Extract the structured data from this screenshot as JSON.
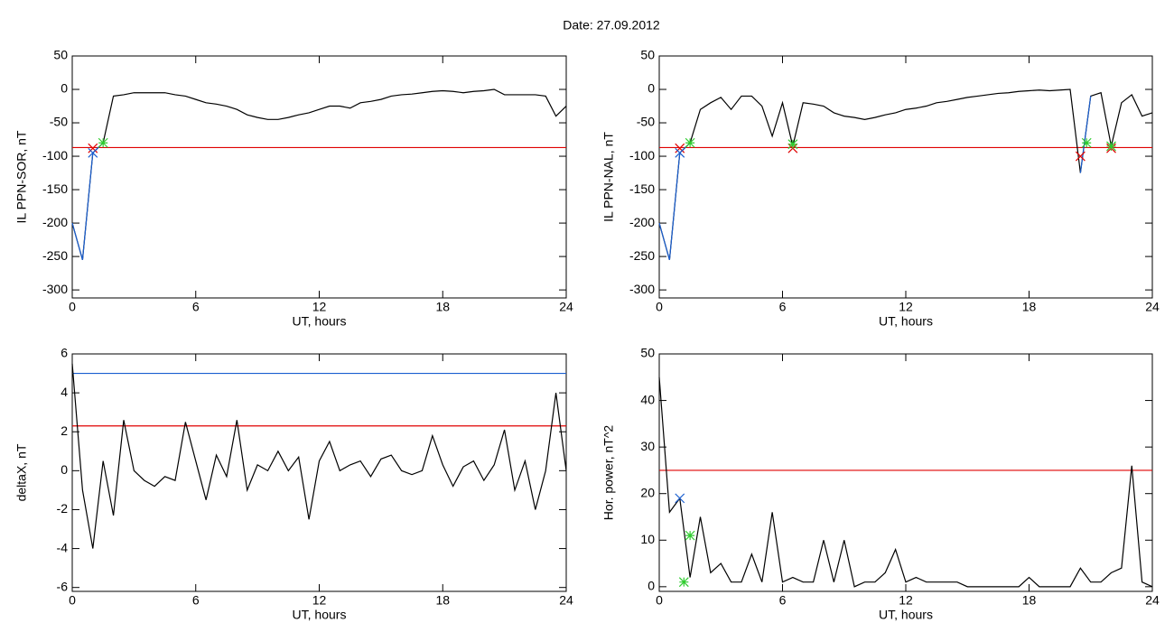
{
  "title": "Date:  27.09.2012",
  "chart_data": [
    {
      "type": "line",
      "y_label": "IL PPN-SOR, nT",
      "x_label": "UT, hours",
      "x": [
        0,
        0.5,
        1,
        1.5,
        2,
        2.5,
        3,
        3.5,
        4,
        4.5,
        5,
        5.5,
        6,
        6.5,
        7,
        7.5,
        8,
        8.5,
        9,
        9.5,
        10,
        10.5,
        11,
        11.5,
        12,
        12.5,
        13,
        13.5,
        14,
        14.5,
        15,
        15.5,
        16,
        16.5,
        17,
        17.5,
        18,
        18.5,
        19,
        19.5,
        20,
        20.5,
        21,
        21.5,
        22,
        22.5,
        23,
        23.5,
        24
      ],
      "series": [
        {
          "color": "#000000",
          "values": [
            -200,
            -255,
            -95,
            -80,
            -10,
            -8,
            -5,
            -5,
            -5,
            -5,
            -8,
            -10,
            -15,
            -20,
            -22,
            -25,
            -30,
            -38,
            -42,
            -45,
            -45,
            -42,
            -38,
            -35,
            -30,
            -25,
            -25,
            -28,
            -20,
            -18,
            -15,
            -10,
            -8,
            -7,
            -5,
            -3,
            -2,
            -3,
            -5,
            -3,
            -2,
            0,
            -8,
            -8,
            -8,
            -8,
            -10,
            -40,
            -25
          ]
        },
        {
          "color": "#1a5fd0",
          "values": [
            -200,
            -255,
            -95,
            -80,
            null,
            null,
            null,
            null,
            null,
            null,
            null,
            null,
            null,
            null,
            null,
            null,
            null,
            null,
            null,
            null,
            null,
            null,
            null,
            null,
            null,
            null,
            null,
            null,
            null,
            null,
            null,
            null,
            null,
            null,
            null,
            null,
            null,
            null,
            null,
            null,
            null,
            null,
            null,
            null,
            null,
            null,
            null,
            null,
            null
          ]
        }
      ],
      "hlines": [
        {
          "value": -87,
          "color": "#e00000"
        }
      ],
      "markers": [
        {
          "x": 1,
          "y": -88,
          "color": "#e00000",
          "symbol": "x"
        },
        {
          "x": 1,
          "y": -95,
          "color": "#1a5fd0",
          "symbol": "x"
        },
        {
          "x": 1.5,
          "y": -80,
          "color": "#2ecc2e",
          "symbol": "star"
        }
      ],
      "xlim": [
        0,
        24
      ],
      "xticks": [
        0,
        6,
        12,
        18,
        24
      ],
      "ylim": [
        -312,
        50
      ],
      "yticks": [
        50,
        0,
        -50,
        -100,
        -150,
        -200,
        -250,
        -300
      ]
    },
    {
      "type": "line",
      "y_label": "IL PPN-NAL, nT",
      "x_label": "UT, hours",
      "x": [
        0,
        0.5,
        1,
        1.5,
        2,
        2.5,
        3,
        3.5,
        4,
        4.5,
        5,
        5.5,
        6,
        6.5,
        7,
        7.5,
        8,
        8.5,
        9,
        9.5,
        10,
        10.5,
        11,
        11.5,
        12,
        12.5,
        13,
        13.5,
        14,
        14.5,
        15,
        15.5,
        16,
        16.5,
        17,
        17.5,
        18,
        18.5,
        19,
        19.5,
        20,
        20.5,
        21,
        21.5,
        22,
        22.5,
        23,
        23.5,
        24
      ],
      "series": [
        {
          "color": "#000000",
          "values": [
            -200,
            -255,
            -95,
            -80,
            -30,
            -20,
            -12,
            -30,
            -10,
            -10,
            -25,
            -70,
            -20,
            -85,
            -20,
            -22,
            -25,
            -35,
            -40,
            -42,
            -45,
            -42,
            -38,
            -35,
            -30,
            -28,
            -25,
            -20,
            -18,
            -15,
            -12,
            -10,
            -8,
            -6,
            -5,
            -3,
            -2,
            -1,
            -2,
            -1,
            0,
            -125,
            -10,
            -5,
            -85,
            -20,
            -8,
            -40,
            -35
          ]
        },
        {
          "color": "#1a5fd0",
          "values": [
            -200,
            -255,
            -95,
            -80,
            null,
            null,
            null,
            null,
            null,
            null,
            null,
            null,
            null,
            null,
            null,
            null,
            null,
            null,
            null,
            null,
            null,
            null,
            null,
            null,
            null,
            null,
            null,
            null,
            null,
            null,
            null,
            null,
            null,
            null,
            null,
            null,
            null,
            null,
            null,
            null,
            null,
            -125,
            -10,
            null,
            null,
            null,
            null,
            null,
            null
          ]
        }
      ],
      "hlines": [
        {
          "value": -87,
          "color": "#e00000"
        }
      ],
      "markers": [
        {
          "x": 1,
          "y": -88,
          "color": "#e00000",
          "symbol": "x"
        },
        {
          "x": 6.5,
          "y": -88,
          "color": "#e00000",
          "symbol": "x"
        },
        {
          "x": 20.5,
          "y": -100,
          "color": "#e00000",
          "symbol": "x"
        },
        {
          "x": 22,
          "y": -88,
          "color": "#e00000",
          "symbol": "x"
        },
        {
          "x": 1,
          "y": -95,
          "color": "#1a5fd0",
          "symbol": "x"
        },
        {
          "x": 1.5,
          "y": -80,
          "color": "#2ecc2e",
          "symbol": "star"
        },
        {
          "x": 6.5,
          "y": -82,
          "color": "#2ecc2e",
          "symbol": "star"
        },
        {
          "x": 20.8,
          "y": -80,
          "color": "#2ecc2e",
          "symbol": "star"
        },
        {
          "x": 22,
          "y": -85,
          "color": "#2ecc2e",
          "symbol": "star"
        }
      ],
      "xlim": [
        0,
        24
      ],
      "xticks": [
        0,
        6,
        12,
        18,
        24
      ],
      "ylim": [
        -312,
        50
      ],
      "yticks": [
        50,
        0,
        -50,
        -100,
        -150,
        -200,
        -250,
        -300
      ]
    },
    {
      "type": "line",
      "y_label": "deltaX, nT",
      "x_label": "UT, hours",
      "x": [
        0,
        0.5,
        1,
        1.5,
        2,
        2.5,
        3,
        3.5,
        4,
        4.5,
        5,
        5.5,
        6,
        6.5,
        7,
        7.5,
        8,
        8.5,
        9,
        9.5,
        10,
        10.5,
        11,
        11.5,
        12,
        12.5,
        13,
        13.5,
        14,
        14.5,
        15,
        15.5,
        16,
        16.5,
        17,
        17.5,
        18,
        18.5,
        19,
        19.5,
        20,
        20.5,
        21,
        21.5,
        22,
        22.5,
        23,
        23.5,
        24
      ],
      "series": [
        {
          "color": "#000000",
          "values": [
            5.5,
            -1,
            -4,
            0.5,
            -2.3,
            2.6,
            0,
            -0.5,
            -0.8,
            -0.3,
            -0.5,
            2.5,
            0.5,
            -1.5,
            0.8,
            -0.3,
            2.6,
            -1,
            0.3,
            0,
            1,
            0,
            0.7,
            -2.5,
            0.5,
            1.5,
            0,
            0.3,
            0.5,
            -0.3,
            0.6,
            0.8,
            0,
            -0.2,
            0,
            1.8,
            0.3,
            -0.8,
            0.2,
            0.5,
            -0.5,
            0.3,
            2.1,
            -1,
            0.5,
            -2,
            0,
            4,
            0
          ]
        }
      ],
      "hlines": [
        {
          "value": 5,
          "color": "#1a5fd0"
        },
        {
          "value": 2.3,
          "color": "#e00000"
        }
      ],
      "markers": [],
      "xlim": [
        0,
        24
      ],
      "xticks": [
        0,
        6,
        12,
        18,
        24
      ],
      "ylim": [
        -6.2,
        6
      ],
      "yticks": [
        6,
        4,
        2,
        0,
        -2,
        -4,
        -6
      ]
    },
    {
      "type": "line",
      "y_label": "Hor. power, nT^2",
      "x_label": "UT, hours",
      "x": [
        0,
        0.5,
        1,
        1.5,
        2,
        2.5,
        3,
        3.5,
        4,
        4.5,
        5,
        5.5,
        6,
        6.5,
        7,
        7.5,
        8,
        8.5,
        9,
        9.5,
        10,
        10.5,
        11,
        11.5,
        12,
        12.5,
        13,
        13.5,
        14,
        14.5,
        15,
        15.5,
        16,
        16.5,
        17,
        17.5,
        18,
        18.5,
        19,
        19.5,
        20,
        20.5,
        21,
        21.5,
        22,
        22.5,
        23,
        23.5,
        24
      ],
      "series": [
        {
          "color": "#000000",
          "values": [
            45,
            16,
            19,
            2,
            15,
            3,
            5,
            1,
            1,
            7,
            1,
            16,
            1,
            2,
            1,
            1,
            10,
            1,
            10,
            0,
            1,
            1,
            3,
            8,
            1,
            2,
            1,
            1,
            1,
            1,
            0,
            0,
            0,
            0,
            0,
            0,
            2,
            0,
            0,
            0,
            0,
            4,
            1,
            1,
            3,
            4,
            26,
            1,
            0
          ]
        }
      ],
      "hlines": [
        {
          "value": 25,
          "color": "#e00000"
        }
      ],
      "markers": [
        {
          "x": 1,
          "y": 19,
          "color": "#1a5fd0",
          "symbol": "x"
        },
        {
          "x": 1.5,
          "y": 11,
          "color": "#2ecc2e",
          "symbol": "star"
        },
        {
          "x": 1.2,
          "y": 1,
          "color": "#2ecc2e",
          "symbol": "star"
        }
      ],
      "xlim": [
        0,
        24
      ],
      "xticks": [
        0,
        6,
        12,
        18,
        24
      ],
      "ylim": [
        -1,
        50
      ],
      "yticks": [
        50,
        40,
        30,
        20,
        10,
        0
      ]
    }
  ]
}
